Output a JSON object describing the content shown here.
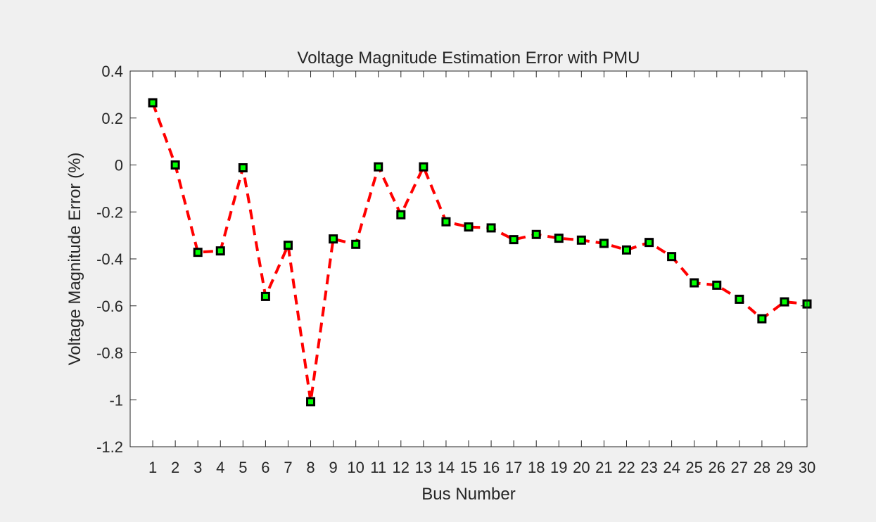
{
  "chart_data": {
    "type": "line",
    "title": "Voltage Magnitude Estimation Error with PMU",
    "xlabel": "Bus Number",
    "ylabel": "Voltage Magnitude Error (%)",
    "x": [
      1,
      2,
      3,
      4,
      5,
      6,
      7,
      8,
      9,
      10,
      11,
      12,
      13,
      14,
      15,
      16,
      17,
      18,
      19,
      20,
      21,
      22,
      23,
      24,
      25,
      26,
      27,
      28,
      29,
      30
    ],
    "series": [
      {
        "values": [
          0.265,
          0.0,
          -0.372,
          -0.366,
          -0.012,
          -0.56,
          -0.342,
          -1.008,
          -0.315,
          -0.338,
          -0.008,
          -0.212,
          -0.008,
          -0.242,
          -0.264,
          -0.268,
          -0.318,
          -0.296,
          -0.312,
          -0.32,
          -0.334,
          -0.362,
          -0.33,
          -0.39,
          -0.502,
          -0.512,
          -0.572,
          -0.655,
          -0.583,
          -0.592
        ],
        "line_color": "#ff0000",
        "line_style": "dashed",
        "marker": "square",
        "marker_face": "#00ff00",
        "marker_edge": "#000000"
      }
    ],
    "xlim": [
      0,
      30
    ],
    "ylim": [
      -1.2,
      0.4
    ],
    "xticks": [
      "1",
      "2",
      "3",
      "4",
      "5",
      "6",
      "7",
      "8",
      "9",
      "10",
      "11",
      "12",
      "13",
      "14",
      "15",
      "16",
      "17",
      "18",
      "19",
      "20",
      "21",
      "22",
      "23",
      "24",
      "25",
      "26",
      "27",
      "28",
      "29",
      "30"
    ],
    "yticks": [
      "-1.2",
      "-1",
      "-0.8",
      "-0.6",
      "-0.4",
      "-0.2",
      "0",
      "0.2",
      "0.4"
    ],
    "grid": false,
    "legend": "none"
  }
}
